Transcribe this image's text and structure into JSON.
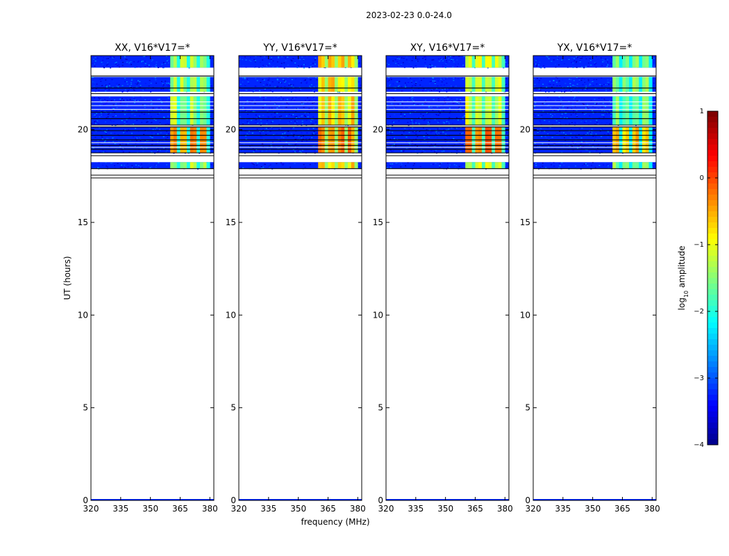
{
  "figure": {
    "suptitle": "2023-02-23 0.0-24.0",
    "xlabel": "frequency (MHz)",
    "ylabel": "UT (hours)",
    "colorbar_label_prefix": "log",
    "colorbar_label_sub": "10",
    "colorbar_label_suffix": " amplitude"
  },
  "chart_data": {
    "type": "heatmap",
    "title": "2023-02-23 0.0-24.0",
    "xlabel": "frequency (MHz)",
    "ylabel": "UT (hours)",
    "xlim": [
      320,
      382
    ],
    "ylim": [
      0,
      24
    ],
    "xticks": [
      320,
      335,
      350,
      365,
      380
    ],
    "xtick_labels": [
      "320",
      "335",
      "350",
      "365",
      "380"
    ],
    "yticks": [
      0,
      5,
      10,
      15,
      20
    ],
    "ytick_labels": [
      "0",
      "5",
      "10",
      "15",
      "20"
    ],
    "colorbar": {
      "label": "log10 amplitude",
      "range": [
        -4,
        1
      ],
      "ticks": [
        1,
        0,
        -1,
        -2,
        -3,
        -4
      ],
      "tick_labels": [
        "1",
        "0",
        "−1",
        "−2",
        "−3",
        "−4"
      ]
    },
    "panels": [
      {
        "title": "XX, V16*V17=*",
        "band_level": -1.3,
        "hot_level": -0.3
      },
      {
        "title": "YY, V16*V17=*",
        "band_level": -0.7,
        "hot_level": -0.3
      },
      {
        "title": "XY, V16*V17=*",
        "band_level": -1.1,
        "hot_level": -0.2
      },
      {
        "title": "YX, V16*V17=*",
        "band_level": -1.5,
        "hot_level": -0.6
      }
    ],
    "background_level": -3.2,
    "rfi_band_mhz": [
      360,
      380
    ],
    "data_segments_hours": [
      [
        23.35,
        24.0
      ],
      [
        22.05,
        22.85
      ],
      [
        20.25,
        21.8
      ],
      [
        18.75,
        20.15
      ],
      [
        17.9,
        18.25
      ]
    ],
    "blank_gap_hours": [
      [
        22.85,
        23.35
      ]
    ],
    "flag_lines_hours": [
      22.9,
      22.25,
      21.95,
      20.95,
      20.6,
      20.25,
      20.15,
      19.95,
      19.7,
      19.45,
      19.15,
      18.95,
      18.75,
      18.6,
      17.9,
      17.55,
      17.4
    ]
  }
}
